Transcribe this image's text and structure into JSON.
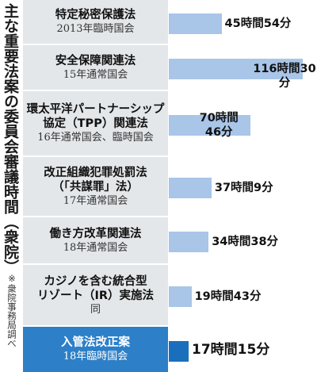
{
  "title": "主な重要法案の委員会審議時間（衆院）",
  "note": "※衆院事務局調べ",
  "chart_data": {
    "type": "bar",
    "orientation": "horizontal",
    "title": "主な重要法案の委員会審議時間（衆院）",
    "unit": "時間",
    "categories": [
      "特定秘密保護法",
      "安全保障関連法",
      "環太平洋パートナーシップ協定（TPP）関連法",
      "改正組織犯罪処罰法（「共謀罪」法）",
      "働き方改革関連法",
      "カジノを含む統合型リゾート（IR）実施法",
      "入管法改正案"
    ],
    "values": [
      45.9,
      116.5,
      70.77,
      37.15,
      34.63,
      19.72,
      17.25
    ],
    "highlight_index": 6,
    "colors": {
      "bar": "#a9c5e8",
      "highlight_bar": "#1a6fbd",
      "label_bg": "#e4e7ea",
      "highlight_label_bg": "#2d7fc7"
    },
    "rows": [
      {
        "law": [
          "特定秘密保護法"
        ],
        "session": [
          "2013年臨時国会"
        ],
        "value_lines": [
          "45時間54分"
        ]
      },
      {
        "law": [
          "安全保障関連法"
        ],
        "session": [
          "15年通常国会"
        ],
        "value_lines": [
          "116時間30分"
        ]
      },
      {
        "law": [
          "環太平洋パートナーシップ",
          "協定（TPP）関連法"
        ],
        "session": [
          "16年通常国会、臨時国会"
        ],
        "value_lines": [
          "70時間",
          "46分"
        ]
      },
      {
        "law": [
          "改正組織犯罪処罰法",
          "（「共謀罪」法）"
        ],
        "session": [
          "17年通常国会"
        ],
        "value_lines": [
          "37時間9分"
        ]
      },
      {
        "law": [
          "働き方改革関連法"
        ],
        "session": [
          "18年通常国会"
        ],
        "value_lines": [
          "34時間38分"
        ]
      },
      {
        "law": [
          "カジノを含む統合型",
          "リゾート（IR）実施法"
        ],
        "session": [
          "同"
        ],
        "value_lines": [
          "19時間43分"
        ]
      },
      {
        "law": [
          "入管法改正案"
        ],
        "session": [
          "18年臨時国会"
        ],
        "value_lines": [
          "17時間15分"
        ]
      }
    ]
  }
}
